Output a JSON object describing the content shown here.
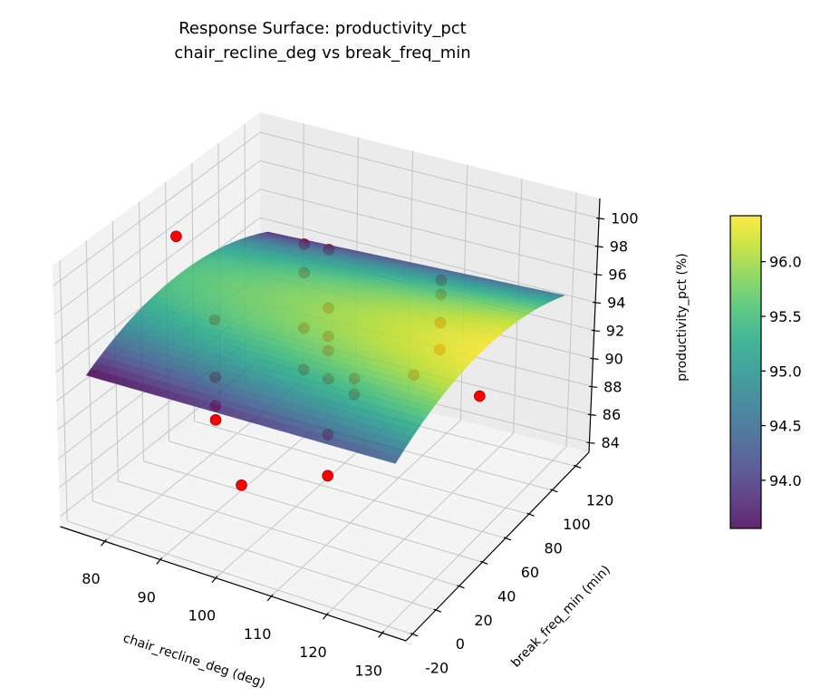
{
  "chart_data": {
    "type": "surface3d",
    "title": "Response Surface: productivity_pct",
    "subtitle": "chair_recline_deg vs break_freq_min",
    "xlabel": "chair_recline_deg (deg)",
    "ylabel": "break_freq_min (min)",
    "zlabel": "productivity_pct (%)",
    "xlim": [
      72,
      134.3
    ],
    "ylim": [
      -25.5,
      131.6
    ],
    "zlim": [
      83.3,
      101.4
    ],
    "xticks": [
      80,
      90,
      100,
      110,
      120,
      130
    ],
    "yticks": [
      -20,
      0,
      20,
      40,
      60,
      80,
      100,
      120
    ],
    "zticks": [
      84,
      86,
      88,
      90,
      92,
      94,
      96,
      98,
      100
    ],
    "grid": true,
    "surface": {
      "x_range": [
        75,
        130
      ],
      "y_range": [
        -15,
        125
      ],
      "fit": {
        "intercept": 95.95,
        "x_center": 102.5,
        "y_center": 55,
        "bx": 0.016,
        "by": 0.002,
        "byy": -0.00039
      },
      "cmap": "viridis"
    },
    "colorbar": {
      "clim": [
        93.56,
        96.42
      ],
      "ticks": [
        94.0,
        94.5,
        95.0,
        95.5,
        96.0
      ],
      "tick_labels": [
        "94.0",
        "94.5",
        "95.0",
        "95.5",
        "96.0"
      ],
      "location": "right"
    },
    "points_color": "#ff0000",
    "points": [
      [
        75,
        55,
        98.3
      ],
      [
        130,
        55,
        93.3
      ],
      [
        102.5,
        -15,
        89.3
      ],
      [
        102.5,
        125,
        86.3
      ],
      [
        90,
        20,
        96.7
      ],
      [
        90,
        20,
        92.7
      ],
      [
        90,
        20,
        90.7
      ],
      [
        90,
        20,
        89.7
      ],
      [
        115,
        90,
        97.0
      ],
      [
        115,
        90,
        96.0
      ],
      [
        115,
        90,
        94.0
      ],
      [
        115,
        90,
        92.1
      ],
      [
        90,
        90,
        96.9
      ],
      [
        90,
        90,
        94.9
      ],
      [
        90,
        90,
        91.0
      ],
      [
        90,
        90,
        88.1
      ],
      [
        115,
        20,
        95.6
      ],
      [
        115,
        20,
        94.5
      ],
      [
        102.5,
        55,
        100.5
      ],
      [
        102.5,
        55,
        96.4
      ],
      [
        102.5,
        55,
        94.4
      ],
      [
        102.5,
        55,
        93.4
      ],
      [
        102.5,
        55,
        91.4
      ],
      [
        102.5,
        55,
        87.5
      ],
      [
        102.5,
        55,
        84.6
      ]
    ]
  }
}
